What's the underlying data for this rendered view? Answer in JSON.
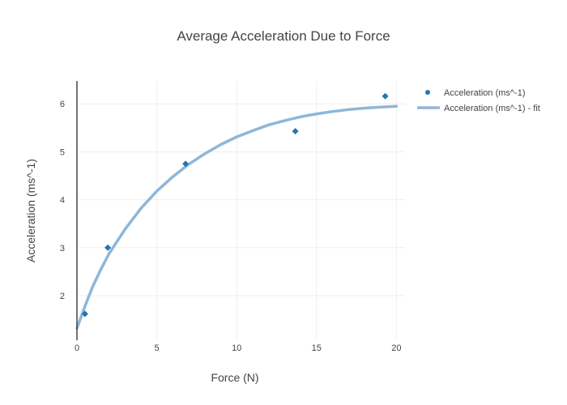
{
  "chart_data": {
    "type": "scatter",
    "title": "Average Acceleration Due to Force",
    "xlabel": "Force (N)",
    "ylabel": "Acceleration (ms^-1)",
    "xlim": [
      0,
      20.5
    ],
    "ylim": [
      1.1,
      6.5
    ],
    "x_ticks": [
      0,
      5,
      10,
      15,
      20
    ],
    "y_ticks": [
      2,
      3,
      4,
      5,
      6
    ],
    "grid": true,
    "legend_position": "top-right",
    "series": [
      {
        "name": "Acceleration (ms^-1)",
        "mode": "markers",
        "marker": "diamond",
        "color": "#1f77b4",
        "x": [
          0.5,
          1.93,
          6.8,
          13.67,
          19.3
        ],
        "y": [
          1.62,
          3.0,
          4.75,
          5.43,
          6.16
        ]
      },
      {
        "name": "Acceleration (ms^-1) - fit",
        "mode": "lines",
        "color": "#8fb6d8",
        "x": [
          0,
          0.5,
          1,
          1.5,
          2,
          3,
          4,
          5,
          6,
          7,
          8,
          9,
          10,
          11,
          12,
          13,
          14,
          15,
          16,
          17,
          18,
          19,
          20
        ],
        "y": [
          1.32,
          1.78,
          2.2,
          2.55,
          2.87,
          3.38,
          3.82,
          4.18,
          4.48,
          4.74,
          4.96,
          5.15,
          5.31,
          5.44,
          5.56,
          5.65,
          5.73,
          5.79,
          5.84,
          5.88,
          5.91,
          5.93,
          5.95
        ]
      }
    ]
  }
}
